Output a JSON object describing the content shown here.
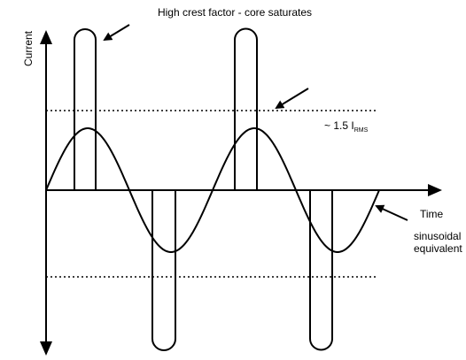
{
  "labels": {
    "title": "High crest factor - core saturates",
    "y_axis": "Current",
    "x_axis": "Time",
    "level": "~ 1.5  I",
    "level_sub": "RMS",
    "sine_1": "sinusoidal",
    "sine_2": "equivalent"
  }
}
